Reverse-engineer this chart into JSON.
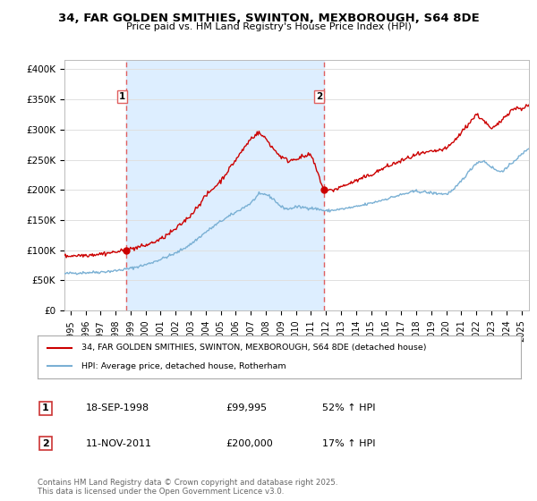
{
  "title1": "34, FAR GOLDEN SMITHIES, SWINTON, MEXBOROUGH, S64 8DE",
  "title2": "Price paid vs. HM Land Registry's House Price Index (HPI)",
  "ylabel_ticks": [
    "£0",
    "£50K",
    "£100K",
    "£150K",
    "£200K",
    "£250K",
    "£300K",
    "£350K",
    "£400K"
  ],
  "ytick_vals": [
    0,
    50000,
    100000,
    150000,
    200000,
    250000,
    300000,
    350000,
    400000
  ],
  "ylim": [
    0,
    415000
  ],
  "xlim_start": 1994.6,
  "xlim_end": 2025.5,
  "sale1_date": 1998.72,
  "sale1_price": 99995,
  "sale2_date": 2011.86,
  "sale2_price": 200000,
  "red_line_color": "#cc0000",
  "blue_line_color": "#7ab0d4",
  "shade_color": "#ddeeff",
  "dashed_line_color": "#e06060",
  "background_color": "#ffffff",
  "grid_color": "#e0e0e0",
  "legend_label_red": "34, FAR GOLDEN SMITHIES, SWINTON, MEXBOROUGH, S64 8DE (detached house)",
  "legend_label_blue": "HPI: Average price, detached house, Rotherham",
  "footer": "Contains HM Land Registry data © Crown copyright and database right 2025.\nThis data is licensed under the Open Government Licence v3.0."
}
